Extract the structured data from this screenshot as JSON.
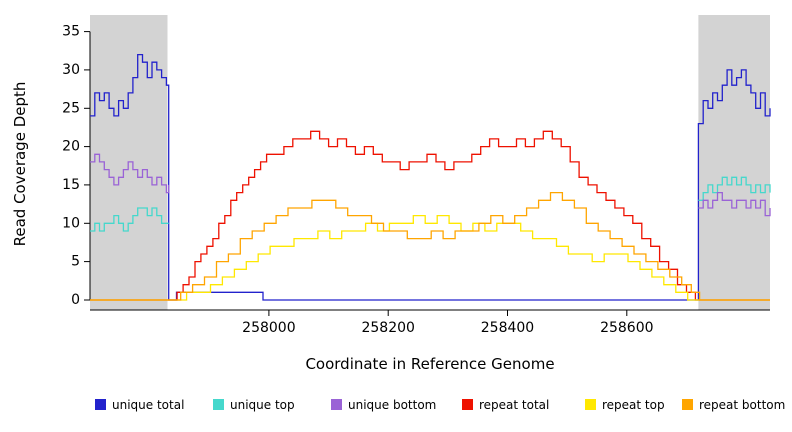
{
  "chart_data": {
    "type": "line",
    "title": "",
    "xlabel": "Coordinate in Reference Genome",
    "ylabel": "Read Coverage Depth",
    "xlim": [
      257700,
      258840
    ],
    "ylim": [
      0,
      36
    ],
    "x_ticks": [
      258000,
      258200,
      258400,
      258600
    ],
    "y_ticks": [
      0,
      5,
      10,
      15,
      20,
      25,
      30,
      35
    ],
    "grid": false,
    "legend_position": "bottom",
    "step_interpolation": true,
    "shaded_regions": [
      {
        "x0": 257700,
        "x1": 257830,
        "color": "#d3d3d3"
      },
      {
        "x0": 258720,
        "x1": 258840,
        "color": "#d3d3d3"
      }
    ],
    "series": [
      {
        "name": "unique total",
        "color": "#2222cc",
        "segments": [
          [
            [
              257700,
              24
            ],
            [
              257708,
              27
            ],
            [
              257716,
              26
            ],
            [
              257724,
              27
            ],
            [
              257732,
              25
            ],
            [
              257740,
              24
            ],
            [
              257748,
              26
            ],
            [
              257756,
              25
            ],
            [
              257764,
              27
            ],
            [
              257772,
              29
            ],
            [
              257780,
              32
            ],
            [
              257788,
              31
            ],
            [
              257796,
              29
            ],
            [
              257804,
              31
            ],
            [
              257812,
              30
            ],
            [
              257820,
              29
            ],
            [
              257828,
              28
            ],
            [
              257832,
              0
            ],
            [
              257845,
              1
            ],
            [
              257990,
              0
            ],
            [
              258720,
              23
            ],
            [
              258728,
              26
            ],
            [
              258736,
              25
            ],
            [
              258744,
              27
            ],
            [
              258752,
              26
            ],
            [
              258760,
              28
            ],
            [
              258768,
              30
            ],
            [
              258776,
              28
            ],
            [
              258784,
              29
            ],
            [
              258792,
              30
            ],
            [
              258800,
              28
            ],
            [
              258808,
              27
            ],
            [
              258816,
              25
            ],
            [
              258824,
              27
            ],
            [
              258832,
              24
            ],
            [
              258840,
              25
            ]
          ]
        ]
      },
      {
        "name": "unique top",
        "color": "#45d8cc",
        "segments": [
          [
            [
              257700,
              9
            ],
            [
              257708,
              10
            ],
            [
              257716,
              9
            ],
            [
              257724,
              10
            ],
            [
              257732,
              10
            ],
            [
              257740,
              11
            ],
            [
              257748,
              10
            ],
            [
              257756,
              9
            ],
            [
              257764,
              10
            ],
            [
              257772,
              11
            ],
            [
              257780,
              12
            ],
            [
              257788,
              12
            ],
            [
              257796,
              11
            ],
            [
              257804,
              12
            ],
            [
              257812,
              11
            ],
            [
              257820,
              10
            ],
            [
              257832,
              10
            ]
          ],
          [
            [
              258720,
              13
            ],
            [
              258728,
              14
            ],
            [
              258736,
              15
            ],
            [
              258744,
              14
            ],
            [
              258752,
              15
            ],
            [
              258760,
              16
            ],
            [
              258768,
              15
            ],
            [
              258776,
              16
            ],
            [
              258784,
              15
            ],
            [
              258792,
              16
            ],
            [
              258800,
              15
            ],
            [
              258808,
              14
            ],
            [
              258816,
              15
            ],
            [
              258824,
              14
            ],
            [
              258832,
              15
            ],
            [
              258840,
              14
            ]
          ]
        ]
      },
      {
        "name": "unique bottom",
        "color": "#9a63d6",
        "segments": [
          [
            [
              257700,
              18
            ],
            [
              257708,
              19
            ],
            [
              257716,
              18
            ],
            [
              257724,
              17
            ],
            [
              257732,
              16
            ],
            [
              257740,
              15
            ],
            [
              257748,
              16
            ],
            [
              257756,
              17
            ],
            [
              257764,
              18
            ],
            [
              257772,
              17
            ],
            [
              257780,
              16
            ],
            [
              257788,
              17
            ],
            [
              257796,
              16
            ],
            [
              257804,
              15
            ],
            [
              257812,
              16
            ],
            [
              257820,
              15
            ],
            [
              257828,
              14
            ],
            [
              257832,
              15
            ]
          ],
          [
            [
              258720,
              12
            ],
            [
              258728,
              13
            ],
            [
              258736,
              12
            ],
            [
              258744,
              13
            ],
            [
              258752,
              14
            ],
            [
              258760,
              13
            ],
            [
              258768,
              13
            ],
            [
              258776,
              12
            ],
            [
              258784,
              13
            ],
            [
              258792,
              13
            ],
            [
              258800,
              12
            ],
            [
              258808,
              13
            ],
            [
              258816,
              12
            ],
            [
              258824,
              13
            ],
            [
              258832,
              11
            ],
            [
              258840,
              12
            ]
          ]
        ]
      },
      {
        "name": "repeat total",
        "color": "#ee1100",
        "segments": [
          [
            [
              257700,
              0
            ],
            [
              257836,
              0
            ],
            [
              257846,
              1
            ],
            [
              257856,
              2
            ],
            [
              257866,
              3
            ],
            [
              257876,
              5
            ],
            [
              257886,
              6
            ],
            [
              257896,
              7
            ],
            [
              257906,
              8
            ],
            [
              257916,
              10
            ],
            [
              257926,
              11
            ],
            [
              257936,
              13
            ],
            [
              257946,
              14
            ],
            [
              257956,
              15
            ],
            [
              257966,
              16
            ],
            [
              257976,
              17
            ],
            [
              257986,
              18
            ],
            [
              257996,
              19
            ],
            [
              258010,
              19
            ],
            [
              258025,
              20
            ],
            [
              258040,
              21
            ],
            [
              258055,
              21
            ],
            [
              258070,
              22
            ],
            [
              258085,
              21
            ],
            [
              258100,
              20
            ],
            [
              258115,
              21
            ],
            [
              258130,
              20
            ],
            [
              258145,
              19
            ],
            [
              258160,
              20
            ],
            [
              258175,
              19
            ],
            [
              258190,
              18
            ],
            [
              258205,
              18
            ],
            [
              258220,
              17
            ],
            [
              258235,
              18
            ],
            [
              258250,
              18
            ],
            [
              258265,
              19
            ],
            [
              258280,
              18
            ],
            [
              258295,
              17
            ],
            [
              258310,
              18
            ],
            [
              258325,
              18
            ],
            [
              258340,
              19
            ],
            [
              258355,
              20
            ],
            [
              258370,
              21
            ],
            [
              258385,
              20
            ],
            [
              258400,
              20
            ],
            [
              258415,
              21
            ],
            [
              258430,
              20
            ],
            [
              258445,
              21
            ],
            [
              258460,
              22
            ],
            [
              258475,
              21
            ],
            [
              258490,
              20
            ],
            [
              258505,
              18
            ],
            [
              258520,
              16
            ],
            [
              258535,
              15
            ],
            [
              258550,
              14
            ],
            [
              258565,
              13
            ],
            [
              258580,
              12
            ],
            [
              258595,
              11
            ],
            [
              258610,
              10
            ],
            [
              258625,
              8
            ],
            [
              258640,
              7
            ],
            [
              258655,
              5
            ],
            [
              258670,
              4
            ],
            [
              258685,
              2
            ],
            [
              258700,
              1
            ],
            [
              258715,
              0
            ],
            [
              258840,
              0
            ]
          ]
        ]
      },
      {
        "name": "repeat top",
        "color": "#ffe800",
        "segments": [
          [
            [
              257700,
              0
            ],
            [
              257846,
              0
            ],
            [
              257862,
              1
            ],
            [
              257882,
              1
            ],
            [
              257902,
              2
            ],
            [
              257922,
              3
            ],
            [
              257942,
              4
            ],
            [
              257962,
              5
            ],
            [
              257982,
              6
            ],
            [
              258002,
              7
            ],
            [
              258022,
              7
            ],
            [
              258042,
              8
            ],
            [
              258062,
              8
            ],
            [
              258082,
              9
            ],
            [
              258102,
              8
            ],
            [
              258122,
              9
            ],
            [
              258142,
              9
            ],
            [
              258162,
              10
            ],
            [
              258182,
              9
            ],
            [
              258202,
              10
            ],
            [
              258222,
              10
            ],
            [
              258242,
              11
            ],
            [
              258262,
              10
            ],
            [
              258282,
              11
            ],
            [
              258302,
              10
            ],
            [
              258322,
              9
            ],
            [
              258342,
              10
            ],
            [
              258362,
              9
            ],
            [
              258382,
              10
            ],
            [
              258402,
              10
            ],
            [
              258422,
              9
            ],
            [
              258442,
              8
            ],
            [
              258462,
              8
            ],
            [
              258482,
              7
            ],
            [
              258502,
              6
            ],
            [
              258522,
              6
            ],
            [
              258542,
              5
            ],
            [
              258562,
              6
            ],
            [
              258582,
              6
            ],
            [
              258602,
              5
            ],
            [
              258622,
              4
            ],
            [
              258642,
              3
            ],
            [
              258662,
              2
            ],
            [
              258682,
              1
            ],
            [
              258702,
              0
            ],
            [
              258840,
              0
            ]
          ]
        ]
      },
      {
        "name": "repeat bottom",
        "color": "#ffa500",
        "segments": [
          [
            [
              257700,
              0
            ],
            [
              257836,
              0
            ],
            [
              257852,
              1
            ],
            [
              257872,
              2
            ],
            [
              257892,
              3
            ],
            [
              257912,
              5
            ],
            [
              257932,
              6
            ],
            [
              257952,
              8
            ],
            [
              257972,
              9
            ],
            [
              257992,
              10
            ],
            [
              258012,
              11
            ],
            [
              258032,
              12
            ],
            [
              258052,
              12
            ],
            [
              258072,
              13
            ],
            [
              258092,
              13
            ],
            [
              258112,
              12
            ],
            [
              258132,
              11
            ],
            [
              258152,
              11
            ],
            [
              258172,
              10
            ],
            [
              258192,
              9
            ],
            [
              258212,
              9
            ],
            [
              258232,
              8
            ],
            [
              258252,
              8
            ],
            [
              258272,
              9
            ],
            [
              258292,
              8
            ],
            [
              258312,
              9
            ],
            [
              258332,
              9
            ],
            [
              258352,
              10
            ],
            [
              258372,
              11
            ],
            [
              258392,
              10
            ],
            [
              258412,
              11
            ],
            [
              258432,
              12
            ],
            [
              258452,
              13
            ],
            [
              258472,
              14
            ],
            [
              258492,
              13
            ],
            [
              258512,
              12
            ],
            [
              258532,
              10
            ],
            [
              258552,
              9
            ],
            [
              258572,
              8
            ],
            [
              258592,
              7
            ],
            [
              258612,
              6
            ],
            [
              258632,
              5
            ],
            [
              258652,
              4
            ],
            [
              258672,
              3
            ],
            [
              258692,
              2
            ],
            [
              258708,
              1
            ],
            [
              258722,
              0
            ],
            [
              258840,
              0
            ]
          ]
        ]
      }
    ]
  }
}
